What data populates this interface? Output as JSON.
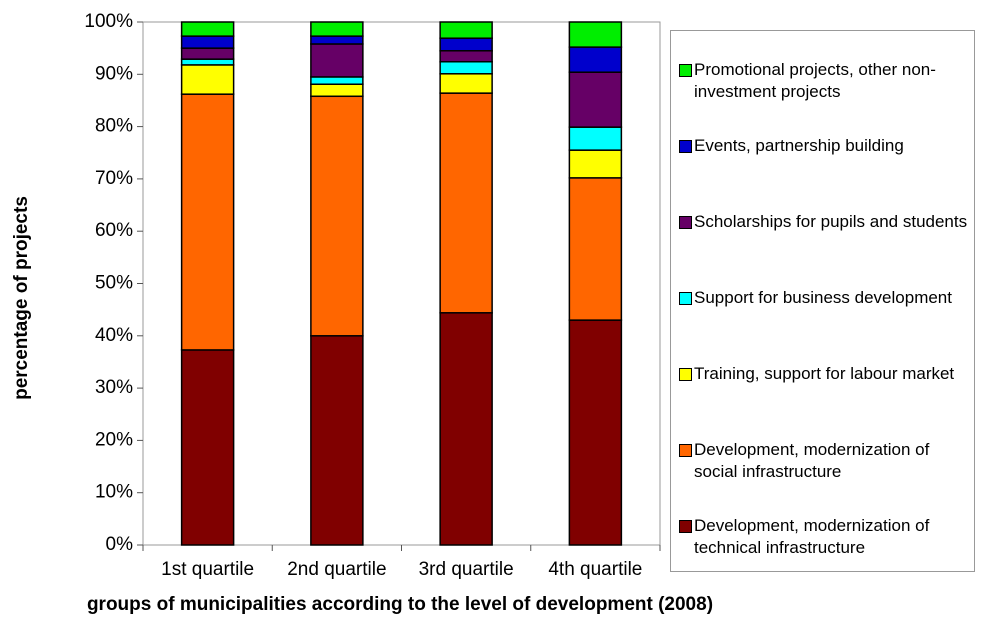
{
  "chart_data": {
    "type": "stacked_bar",
    "ylabel": "percentage of projects",
    "xlabel": "groups of municipalities according to the level of development (2008)",
    "categories": [
      "1st quartile",
      "2nd quartile",
      "3rd quartile",
      "4th quartile"
    ],
    "ylim": [
      0,
      100
    ],
    "yticks": [
      {
        "value": 0,
        "label": "0%"
      },
      {
        "value": 10,
        "label": "10%"
      },
      {
        "value": 20,
        "label": "20%"
      },
      {
        "value": 30,
        "label": "30%"
      },
      {
        "value": 40,
        "label": "40%"
      },
      {
        "value": 50,
        "label": "50%"
      },
      {
        "value": 60,
        "label": "60%"
      },
      {
        "value": 70,
        "label": "70%"
      },
      {
        "value": 80,
        "label": "80%"
      },
      {
        "value": 90,
        "label": "90%"
      },
      {
        "value": 100,
        "label": "100%"
      }
    ],
    "series": [
      {
        "name": "Development, modernization of technical infrastructure",
        "color": "#800000",
        "values": [
          37.3,
          40.0,
          44.4,
          43.0
        ]
      },
      {
        "name": "Development, modernization of social infrastructure",
        "color": "#ff6600",
        "values": [
          48.9,
          45.8,
          42.0,
          27.2
        ]
      },
      {
        "name": "Training, support for labour market",
        "color": "#ffff00",
        "values": [
          5.6,
          2.3,
          3.7,
          5.3
        ]
      },
      {
        "name": "Support for business development",
        "color": "#00ffff",
        "values": [
          1.1,
          1.4,
          2.3,
          4.4
        ]
      },
      {
        "name": "Scholarships for pupils and students",
        "color": "#660066",
        "values": [
          2.1,
          6.3,
          2.1,
          10.5
        ]
      },
      {
        "name": "Events, partnership building",
        "color": "#0000cc",
        "values": [
          2.3,
          1.5,
          2.4,
          4.8
        ]
      },
      {
        "name": "Promotional projects, other non-investment projects",
        "color": "#00ee00",
        "values": [
          2.7,
          2.7,
          3.1,
          4.8
        ]
      }
    ]
  }
}
